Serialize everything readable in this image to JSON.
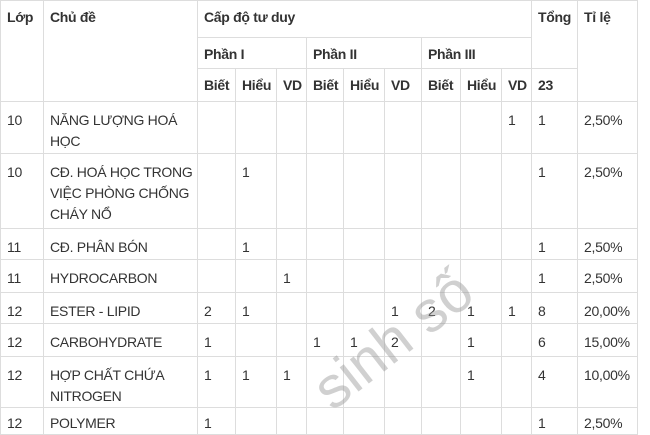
{
  "table": {
    "headers": {
      "lop": "Lớp",
      "chu_de": "Chủ đề",
      "cap_do": "Cấp độ tư duy",
      "tong": "Tổng",
      "ti_le": "Tỉ lệ",
      "parts": [
        "Phần I",
        "Phần II",
        "Phần III"
      ],
      "levels": [
        "Biết",
        "Hiểu",
        "VD",
        "Biết",
        "Hiểu",
        "VD",
        "Biết",
        "Hiểu",
        "VD"
      ],
      "tong_value": "23"
    },
    "rows": [
      {
        "lop": "10",
        "chu_de": "NĂNG LƯỢNG HOÁ HỌC",
        "cells": [
          "",
          "",
          "",
          "",
          "",
          "",
          "",
          "",
          "1"
        ],
        "tong": "1",
        "ti_le": "2,50%"
      },
      {
        "lop": "10",
        "chu_de": "CĐ. HOÁ HỌC TRONG VIỆC PHÒNG CHỐNG CHÁY NỔ",
        "cells": [
          "",
          "1",
          "",
          "",
          "",
          "",
          "",
          "",
          ""
        ],
        "tong": "1",
        "ti_le": "2,50%"
      },
      {
        "lop": "11",
        "chu_de": "CĐ. PHÂN BÓN",
        "cells": [
          "",
          "1",
          "",
          "",
          "",
          "",
          "",
          "",
          ""
        ],
        "tong": "1",
        "ti_le": "2,50%"
      },
      {
        "lop": "11",
        "chu_de": "HYDROCARBON",
        "cells": [
          "",
          "",
          "1",
          "",
          "",
          "",
          "",
          "",
          ""
        ],
        "tong": "1",
        "ti_le": "2,50%"
      },
      {
        "lop": "12",
        "chu_de": "ESTER - LIPID",
        "cells": [
          "2",
          "1",
          "",
          "",
          "",
          "1",
          "2",
          "1",
          "1"
        ],
        "tong": "8",
        "ti_le": "20,00%"
      },
      {
        "lop": "12",
        "chu_de": "CARBOHYDRATE",
        "cells": [
          "1",
          "",
          "",
          "1",
          "1",
          "2",
          "",
          "1",
          ""
        ],
        "tong": "6",
        "ti_le": "15,00%"
      },
      {
        "lop": "12",
        "chu_de": "HỢP CHẤT CHỨA NITROGEN",
        "cells": [
          "1",
          "1",
          "1",
          "",
          "",
          "",
          "",
          "1",
          ""
        ],
        "tong": "4",
        "ti_le": "10,00%"
      },
      {
        "lop": "12",
        "chu_de": "POLYMER",
        "cells": [
          "1",
          "",
          "",
          "",
          "",
          "",
          "",
          "",
          ""
        ],
        "tong": "1",
        "ti_le": "2,50%"
      }
    ]
  },
  "watermark": "sinh số"
}
